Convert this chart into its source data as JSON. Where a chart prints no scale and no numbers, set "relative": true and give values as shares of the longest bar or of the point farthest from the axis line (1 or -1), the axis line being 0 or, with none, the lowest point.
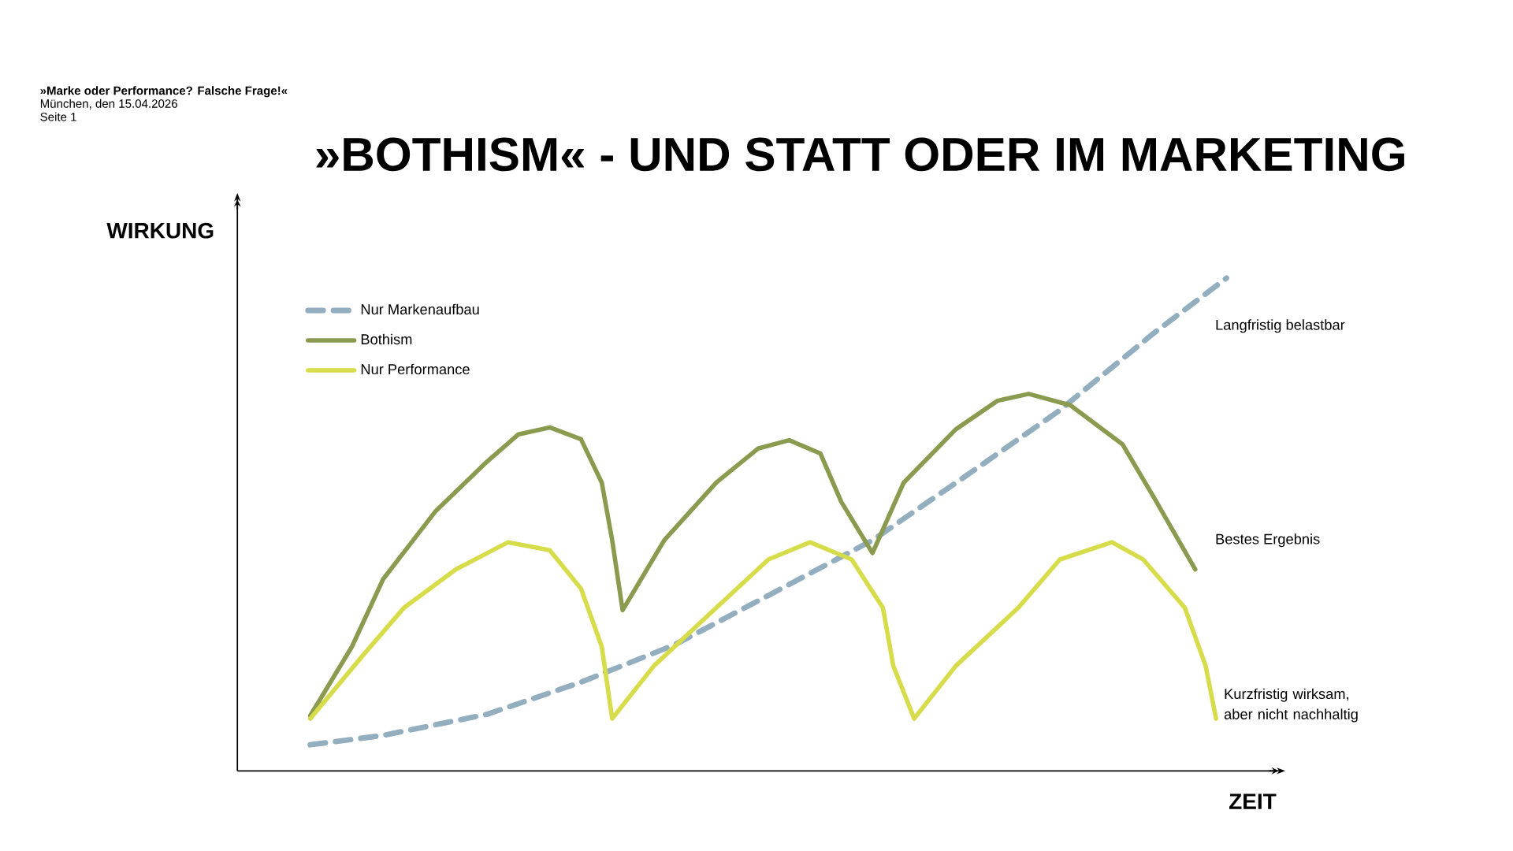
{
  "chart_data": {
    "type": "line",
    "title": "»BOTHISM« - UND STATT ODER IM MARKETING",
    "xlabel": "ZEIT",
    "ylabel": "WIRKUNG",
    "relative": true,
    "legend": "top left",
    "annotations": [
      "»Marke oder Performance? Falsche Frage!«",
      "München, den 15.04.2026",
      "Seite 1",
      "Langfristig belastbar",
      "Bestes Ergebnis",
      "Kurzfristig wirksam, aber nicht nachhaltig"
    ],
    "categories": [
      null,
      null,
      null,
      null,
      null,
      null,
      null,
      null,
      null,
      null,
      null,
      null,
      null,
      null,
      null,
      null,
      null,
      null,
      null,
      null,
      null,
      null,
      null,
      null,
      null,
      null,
      null,
      null,
      null,
      null,
      null,
      null,
      null,
      null,
      null,
      null,
      null,
      null,
      null,
      null,
      null,
      null,
      null,
      null,
      null,
      null,
      null,
      null,
      null,
      null,
      null,
      null,
      null,
      null,
      null,
      null,
      null,
      null,
      null,
      null,
      null,
      null,
      null,
      null,
      null,
      null,
      null,
      null,
      null,
      null,
      null,
      null,
      null,
      null,
      null,
      null,
      null,
      null,
      null,
      null,
      null,
      null,
      null,
      null,
      null,
      null,
      null,
      null,
      null,
      null,
      null,
      null,
      null,
      null,
      null,
      null,
      null,
      null,
      null,
      null
    ],
    "series": [
      {
        "name": "Nur Markenaufbau",
        "color": "#93aebf",
        "line_style": "dashed",
        "values": [
          null,
          null,
          null,
          null,
          null,
          null,
          null,
          0.053,
          null,
          null,
          null,
          null,
          null,
          null,
          0.072,
          null,
          null,
          null,
          null,
          null,
          null,
          null,
          null,
          null,
          0.115,
          null,
          null,
          null,
          null,
          null,
          null,
          null,
          null,
          0.18,
          null,
          null,
          null,
          null,
          null,
          null,
          null,
          null,
          0.256,
          null,
          null,
          null,
          null,
          null,
          null,
          null,
          null,
          0.356,
          null,
          null,
          null,
          null,
          null,
          null,
          null,
          null,
          null,
          0.468,
          null,
          null,
          null,
          null,
          null,
          null,
          null,
          null,
          0.599,
          null,
          null,
          null,
          null,
          null,
          null,
          null,
          null,
          0.732,
          null,
          null,
          null,
          null,
          null,
          null,
          null,
          null,
          0.888,
          null,
          null,
          null,
          null,
          null,
          null,
          1.0,
          null,
          null,
          null,
          null
        ]
      },
      {
        "name": "Bothism",
        "color": "#8a9a4e",
        "line_style": "solid",
        "values": [
          null,
          null,
          null,
          null,
          null,
          null,
          null,
          0.112,
          null,
          null,
          null,
          0.252,
          null,
          null,
          0.389,
          null,
          null,
          null,
          null,
          0.526,
          null,
          null,
          null,
          null,
          0.628,
          null,
          null,
          0.683,
          null,
          null,
          0.697,
          null,
          null,
          0.673,
          null,
          0.585,
          0.468,
          0.326,
          null,
          null,
          null,
          0.468,
          null,
          null,
          null,
          null,
          0.585,
          null,
          null,
          null,
          0.654,
          null,
          null,
          0.671,
          null,
          null,
          0.644,
          null,
          0.546,
          null,
          null,
          0.442,
          null,
          null,
          0.585,
          null,
          null,
          null,
          null,
          0.693,
          null,
          null,
          null,
          0.751,
          null,
          null,
          0.765,
          null,
          null,
          null,
          0.742,
          null,
          null,
          null,
          null,
          0.663,
          null,
          null,
          0.556,
          null,
          null,
          null,
          0.409,
          null,
          null,
          null,
          null,
          null,
          null,
          null
        ]
      },
      {
        "name": "Nur Performance",
        "color": "#d6dc4a",
        "line_style": "solid",
        "values": [
          null,
          null,
          null,
          null,
          null,
          null,
          null,
          0.106,
          null,
          null,
          null,
          null,
          0.233,
          null,
          null,
          null,
          0.331,
          null,
          null,
          null,
          null,
          0.409,
          null,
          null,
          null,
          null,
          0.464,
          null,
          null,
          null,
          0.448,
          null,
          null,
          0.37,
          null,
          0.252,
          0.106,
          null,
          null,
          null,
          0.213,
          null,
          null,
          null,
          null,
          null,
          0.331,
          null,
          null,
          null,
          null,
          0.429,
          null,
          null,
          null,
          0.464,
          null,
          null,
          null,
          0.429,
          null,
          null,
          0.331,
          0.213,
          null,
          0.106,
          null,
          null,
          null,
          0.213,
          null,
          null,
          null,
          null,
          null,
          0.331,
          null,
          null,
          null,
          0.429,
          null,
          null,
          null,
          null,
          0.464,
          null,
          null,
          0.429,
          null,
          null,
          null,
          0.331,
          null,
          0.213,
          0.106,
          null,
          null,
          null,
          null,
          null
        ]
      }
    ]
  }
}
